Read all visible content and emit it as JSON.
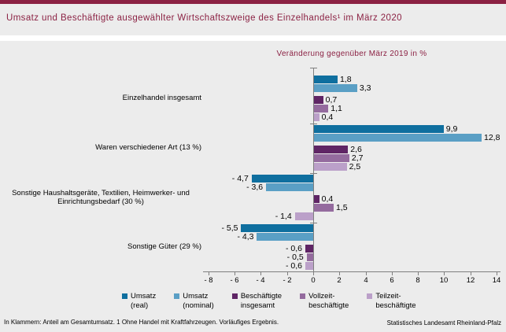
{
  "page": {
    "title": "Umsatz und Beschäftigte ausgewählter Wirtschaftszweige des Einzelhandels¹ im März 2020",
    "footnote": "In Klammern: Anteil am Gesamtumsatz. 1 Ohne Handel mit Kraftfahrzeugen. Vorläufiges Ergebnis.",
    "source": "Statistisches Landesamt Rheinland-Pfalz"
  },
  "colors": {
    "accent_maroon": "#8b2143",
    "background": "#ececec",
    "axis_gray": "#7f7f7f",
    "umsatz_real": "#0f6f9f",
    "umsatz_nominal": "#5a9fc5",
    "beschaeftigte_insgesamt": "#5f2565",
    "vollzeitbeschaeftigte": "#946b9e",
    "teilzeitbeschaeftigte": "#bba0c9"
  },
  "chart_data": {
    "type": "bar",
    "orientation": "horizontal",
    "title": "Umsatz und Beschäftigte ausgewählter Wirtschaftszweige des Einzelhandels¹ im März 2020",
    "subtitle": "Veränderung gegenüber März 2019 in %",
    "xlabel": "",
    "ylabel": "",
    "xlim": [
      -8,
      14
    ],
    "xticks": [
      -8,
      -6,
      -4,
      -2,
      0,
      2,
      4,
      6,
      8,
      10,
      12,
      14
    ],
    "grid": false,
    "legend_position": "bottom",
    "decimal_separator": ",",
    "categories": [
      "Einzelhandel insgesamt",
      "Waren verschiedener Art (13 %)",
      "Sonstige Haushaltsgeräte, Textilien, Heimwerker- und Einrichtungsbedarf (30 %)",
      "Sonstige Güter (29 %)"
    ],
    "category_label_lines": [
      [
        "Einzelhandel insgesamt"
      ],
      [
        "Waren verschiedener Art (13 %)"
      ],
      [
        "Sonstige Haushaltsgeräte, Textilien, Heimwerker- und",
        "Einrichtungsbedarf (30 %)"
      ],
      [
        "Sonstige Güter (29 %)"
      ]
    ],
    "series": [
      {
        "name": "Umsatz (real)",
        "color": "#0f6f9f",
        "values": [
          1.8,
          9.9,
          -4.7,
          -5.5
        ]
      },
      {
        "name": "Umsatz (nominal)",
        "color": "#5a9fc5",
        "values": [
          3.3,
          12.8,
          -3.6,
          -4.3
        ]
      },
      {
        "name": "Beschäftigte insgesamt",
        "color": "#5f2565",
        "values": [
          0.7,
          2.6,
          0.4,
          -0.6
        ]
      },
      {
        "name": "Vollzeitbeschäftigte",
        "color": "#946b9e",
        "values": [
          1.1,
          2.7,
          1.5,
          -0.5
        ]
      },
      {
        "name": "Teilzeitbeschäftigte",
        "color": "#bba0c9",
        "values": [
          0.4,
          2.5,
          -1.4,
          -0.6
        ]
      }
    ],
    "legend": [
      {
        "lines": [
          "Umsatz",
          "(real)"
        ]
      },
      {
        "lines": [
          "Umsatz",
          "(nominal)"
        ]
      },
      {
        "lines": [
          "Beschäftigte",
          "insgesamt"
        ]
      },
      {
        "lines": [
          "Vollzeit-",
          "beschäftigte"
        ]
      },
      {
        "lines": [
          "Teilzeit-",
          "beschäftigte"
        ]
      }
    ]
  }
}
